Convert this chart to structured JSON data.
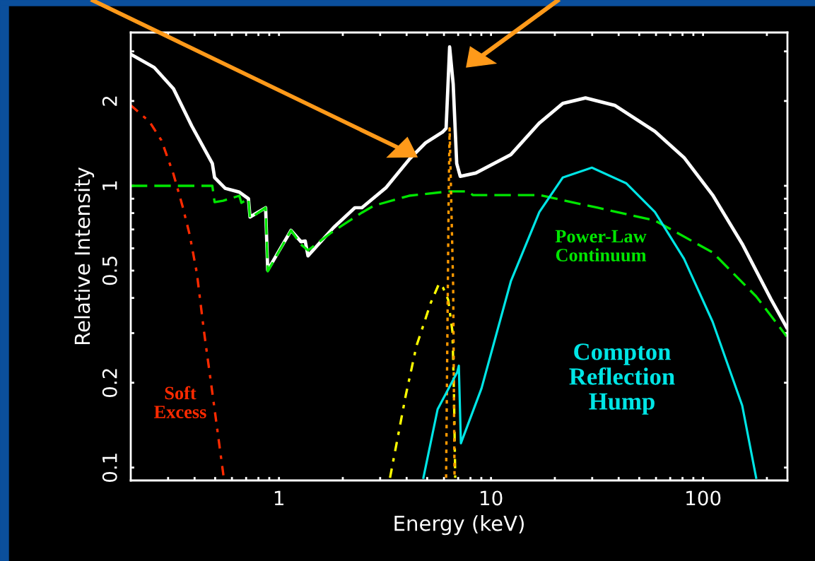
{
  "chart_data": {
    "type": "line",
    "xlabel": "Energy (keV)",
    "ylabel": "Relative Intensity",
    "log": "xy",
    "grid": false,
    "legend": false,
    "xlim": [
      0.2,
      250
    ],
    "ylim": [
      0.09,
      3.5
    ],
    "xticks": [
      {
        "value": 0.3,
        "label": null
      },
      {
        "value": 0.4,
        "label": null
      },
      {
        "value": 0.5,
        "label": null
      },
      {
        "value": 0.6,
        "label": null
      },
      {
        "value": 0.7,
        "label": null
      },
      {
        "value": 0.8,
        "label": null
      },
      {
        "value": 0.9,
        "label": null
      },
      1,
      {
        "value": 2,
        "label": null
      },
      {
        "value": 3,
        "label": null
      },
      {
        "value": 4,
        "label": null
      },
      {
        "value": 5,
        "label": null
      },
      {
        "value": 6,
        "label": null
      },
      {
        "value": 7,
        "label": null
      },
      {
        "value": 8,
        "label": null
      },
      {
        "value": 9,
        "label": null
      },
      10,
      {
        "value": 20,
        "label": null
      },
      {
        "value": 30,
        "label": null
      },
      {
        "value": 40,
        "label": null
      },
      {
        "value": 50,
        "label": null
      },
      {
        "value": 60,
        "label": null
      },
      {
        "value": 70,
        "label": null
      },
      {
        "value": 80,
        "label": null
      },
      {
        "value": 90,
        "label": null
      },
      100,
      {
        "value": 200,
        "label": null
      }
    ],
    "yticks": [
      0.1,
      0.2,
      {
        "value": 0.3,
        "label": null
      },
      {
        "value": 0.4,
        "label": null
      },
      0.5,
      {
        "value": 0.6,
        "label": null
      },
      {
        "value": 0.7,
        "label": null
      },
      {
        "value": 0.8,
        "label": null
      },
      {
        "value": 0.9,
        "label": null
      },
      1,
      2,
      {
        "value": 3,
        "label": null
      }
    ],
    "series": [
      {
        "color": "#ffffff",
        "line_style": "solid",
        "x": [
          0.2,
          0.258,
          0.318,
          0.388,
          0.485,
          0.497,
          0.557,
          0.65,
          0.718,
          0.73,
          0.865,
          0.885,
          1.14,
          1.27,
          1.33,
          1.37,
          1.81,
          2.28,
          2.46,
          3.19,
          4.11,
          4.91,
          5.9,
          6.14,
          6.38,
          6.63,
          6.89,
          7.16,
          8.48,
          12.4,
          16.9,
          21.8,
          27.9,
          38.3,
          59.3,
          81.3,
          111,
          153,
          209,
          248
        ],
        "values": [
          2.93,
          2.63,
          2.21,
          1.63,
          1.2,
          1.07,
          0.98,
          0.95,
          0.9,
          0.775,
          0.836,
          0.502,
          0.695,
          0.633,
          0.637,
          0.564,
          0.711,
          0.836,
          0.836,
          0.983,
          1.24,
          1.42,
          1.55,
          1.6,
          3.11,
          2.3,
          1.2,
          1.08,
          1.11,
          1.29,
          1.67,
          1.96,
          2.05,
          1.93,
          1.56,
          1.26,
          0.927,
          0.622,
          0.396,
          0.314
        ]
      },
      {
        "name": "Power-Law\nContinuum",
        "color": "#00e600",
        "line_style": "dashed",
        "x": [
          0.2,
          0.485,
          0.497,
          0.545,
          0.65,
          0.665,
          0.718,
          0.73,
          0.865,
          0.885,
          1.14,
          1.27,
          1.37,
          1.77,
          2.46,
          2.8,
          4.11,
          6.28,
          7.79,
          8.22,
          16.9,
          31.8,
          59.3,
          111,
          178,
          248
        ],
        "values": [
          1.0,
          1.0,
          0.875,
          0.885,
          0.922,
          0.87,
          0.9,
          0.766,
          0.836,
          0.497,
          0.695,
          0.619,
          0.59,
          0.683,
          0.803,
          0.85,
          0.922,
          0.955,
          0.955,
          0.927,
          0.927,
          0.836,
          0.753,
          0.58,
          0.405,
          0.292
        ]
      },
      {
        "name": "Soft\nExcess",
        "color": "#ff2a00",
        "line_style": "dashdot",
        "x": [
          0.2,
          0.245,
          0.279,
          0.318,
          0.351,
          0.379,
          0.41,
          0.443,
          0.497,
          0.549
        ],
        "values": [
          1.93,
          1.69,
          1.45,
          1.1,
          0.846,
          0.671,
          0.49,
          0.304,
          0.161,
          0.092
        ]
      },
      {
        "color": "#ffff00",
        "line_style": "dashdot",
        "x": [
          3.34,
          3.96,
          4.45,
          5.19,
          5.69,
          5.95,
          6.28,
          6.58,
          6.69,
          6.78
        ],
        "values": [
          0.092,
          0.18,
          0.27,
          0.383,
          0.45,
          0.434,
          0.394,
          0.304,
          0.18,
          0.092
        ]
      },
      {
        "color": "#ff9900",
        "line_style": "dotted",
        "x": [
          6.14,
          6.31,
          6.38,
          6.63,
          6.73
        ],
        "values": [
          0.092,
          0.886,
          1.6,
          0.437,
          0.092
        ]
      },
      {
        "name": "Compton\nReflection\nHump",
        "color": "#00e5e5",
        "line_style": "solid",
        "x": [
          4.8,
          5.6,
          6.93,
          7.05,
          7.21,
          9.02,
          12.4,
          16.9,
          21.8,
          29.9,
          43.5,
          59.3,
          81.3,
          111,
          153,
          178
        ],
        "values": [
          0.092,
          0.161,
          0.218,
          0.23,
          0.122,
          0.191,
          0.458,
          0.807,
          1.07,
          1.16,
          1.02,
          0.807,
          0.551,
          0.329,
          0.166,
          0.092
        ]
      }
    ]
  }
}
